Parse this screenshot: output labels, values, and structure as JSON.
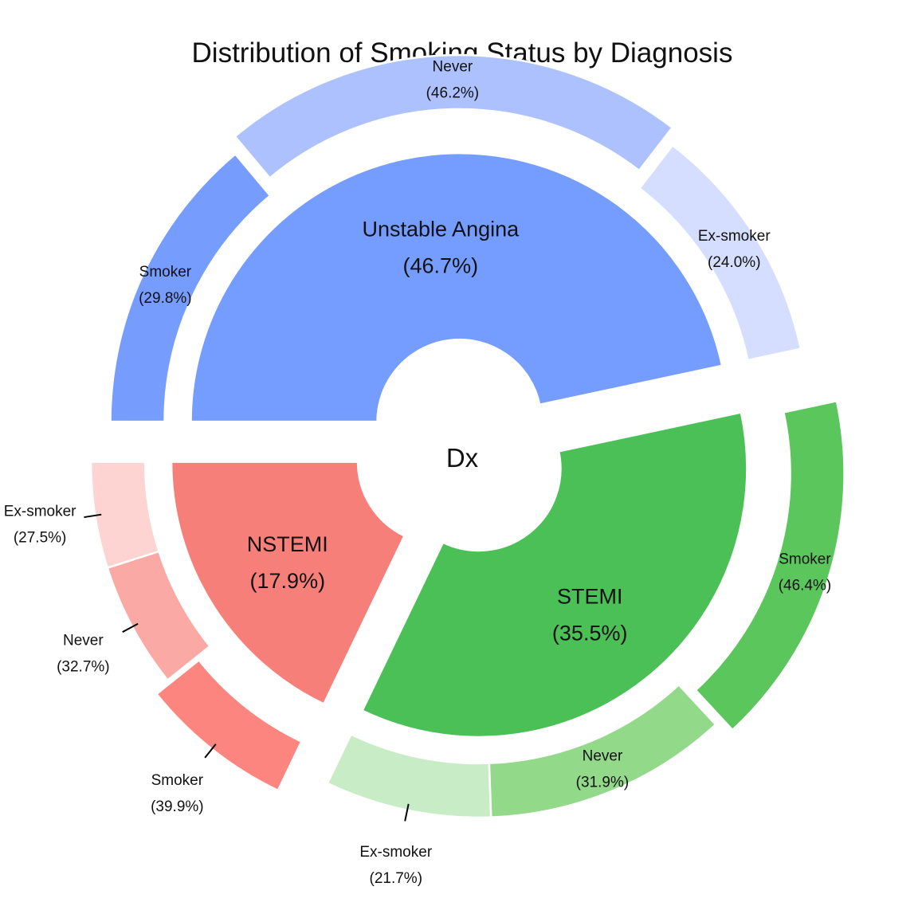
{
  "chart_data": {
    "type": "sunburst",
    "title": "Distribution of Smoking Status by Diagnosis",
    "center_label": "Dx",
    "groups": [
      {
        "name": "NSTEMI",
        "percent": 17.9,
        "percent_label": "(17.9%)",
        "color": "#f77f7a",
        "children": [
          {
            "name": "Ex-smoker",
            "percent": 27.5,
            "percent_label": "(27.5%)",
            "color": "#fdd4d2"
          },
          {
            "name": "Never",
            "percent": 32.7,
            "percent_label": "(32.7%)",
            "color": "#fba9a4"
          },
          {
            "name": "Smoker",
            "percent": 39.9,
            "percent_label": "(39.9%)",
            "color": "#fd857f"
          }
        ]
      },
      {
        "name": "STEMI",
        "percent": 35.5,
        "percent_label": "(35.5%)",
        "color": "#4ac056",
        "children": [
          {
            "name": "Ex-smoker",
            "percent": 21.7,
            "percent_label": "(21.7%)",
            "color": "#c8edc6"
          },
          {
            "name": "Never",
            "percent": 31.9,
            "percent_label": "(31.9%)",
            "color": "#93d98a"
          },
          {
            "name": "Smoker",
            "percent": 46.4,
            "percent_label": "(46.4%)",
            "color": "#5ac65c"
          }
        ]
      },
      {
        "name": "Unstable Angina",
        "percent": 46.7,
        "percent_label": "(46.7%)",
        "color": "#749dff",
        "children": [
          {
            "name": "Ex-smoker",
            "percent": 24.0,
            "percent_label": "(24.0%)",
            "color": "#d6deff"
          },
          {
            "name": "Never",
            "percent": 46.2,
            "percent_label": "(46.2%)",
            "color": "#adc1ff"
          },
          {
            "name": "Smoker",
            "percent": 29.8,
            "percent_label": "(29.8%)",
            "color": "#769cfd"
          }
        ]
      }
    ]
  }
}
